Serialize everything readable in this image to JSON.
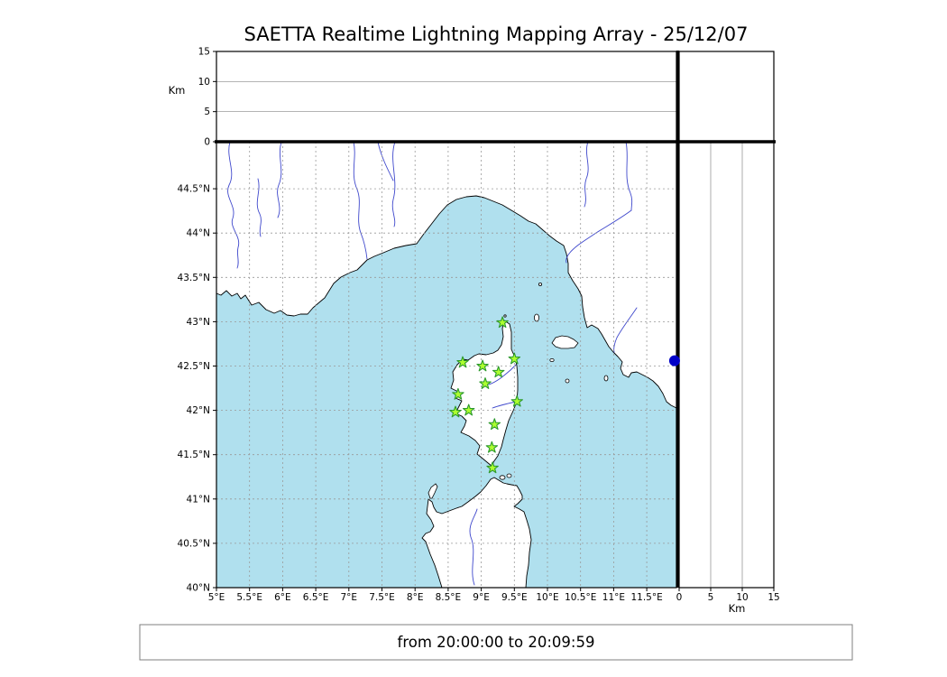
{
  "title": "SAETTA Realtime Lightning Mapping Array - 25/12/07",
  "time_range": "from 20:00:00 to 20:09:59",
  "colors": {
    "sea": "#b0e0ee",
    "land": "#ffffff",
    "river": "#3f48cc",
    "grid": "#999999",
    "station_fill": "#adff2f",
    "station_stroke": "#2d9a2d",
    "edge_marker": "#0000c8"
  },
  "map": {
    "lon_ticks": [
      {
        "label": "5°E",
        "value": 5
      },
      {
        "label": "5.5°E",
        "value": 5.5
      },
      {
        "label": "6°E",
        "value": 6
      },
      {
        "label": "6.5°E",
        "value": 6.5
      },
      {
        "label": "7°E",
        "value": 7
      },
      {
        "label": "7.5°E",
        "value": 7.5
      },
      {
        "label": "8°E",
        "value": 8
      },
      {
        "label": "8.5°E",
        "value": 8.5
      },
      {
        "label": "9°E",
        "value": 9
      },
      {
        "label": "9.5°E",
        "value": 9.5
      },
      {
        "label": "10°E",
        "value": 10
      },
      {
        "label": "10.5°E",
        "value": 10.5
      },
      {
        "label": "11°E",
        "value": 11
      },
      {
        "label": "11.5°E",
        "value": 11.5
      }
    ],
    "lat_ticks": [
      {
        "label": "44.5°N",
        "value": 44.5
      },
      {
        "label": "44°N",
        "value": 44
      },
      {
        "label": "43.5°N",
        "value": 43.5
      },
      {
        "label": "43°N",
        "value": 43
      },
      {
        "label": "42.5°N",
        "value": 42.5
      },
      {
        "label": "42°N",
        "value": 42
      },
      {
        "label": "41.5°N",
        "value": 41.5
      },
      {
        "label": "41°N",
        "value": 41
      },
      {
        "label": "40.5°N",
        "value": 40.5
      },
      {
        "label": "40°N",
        "value": 40
      }
    ],
    "extent": {
      "lon_min": 5,
      "lon_max": 11.95,
      "lat_min": 40,
      "lat_max": 45.03
    }
  },
  "altitude_axis": {
    "label": "Km",
    "ticks": [
      {
        "label": "0",
        "value": 0
      },
      {
        "label": "5",
        "value": 5
      },
      {
        "label": "10",
        "value": 10
      },
      {
        "label": "15",
        "value": 15
      }
    ],
    "max": 15
  },
  "stations": [
    {
      "lon": 9.32,
      "lat": 42.99
    },
    {
      "lon": 8.72,
      "lat": 42.54
    },
    {
      "lon": 9.02,
      "lat": 42.5
    },
    {
      "lon": 9.26,
      "lat": 42.43
    },
    {
      "lon": 9.5,
      "lat": 42.58
    },
    {
      "lon": 9.06,
      "lat": 42.3
    },
    {
      "lon": 8.65,
      "lat": 42.18
    },
    {
      "lon": 9.54,
      "lat": 42.1
    },
    {
      "lon": 8.61,
      "lat": 41.98
    },
    {
      "lon": 8.81,
      "lat": 42.0
    },
    {
      "lon": 9.2,
      "lat": 41.84
    },
    {
      "lon": 9.16,
      "lat": 41.58
    },
    {
      "lon": 9.17,
      "lat": 41.35
    }
  ],
  "edge_marker": {
    "lon": 11.92,
    "lat": 42.56
  }
}
